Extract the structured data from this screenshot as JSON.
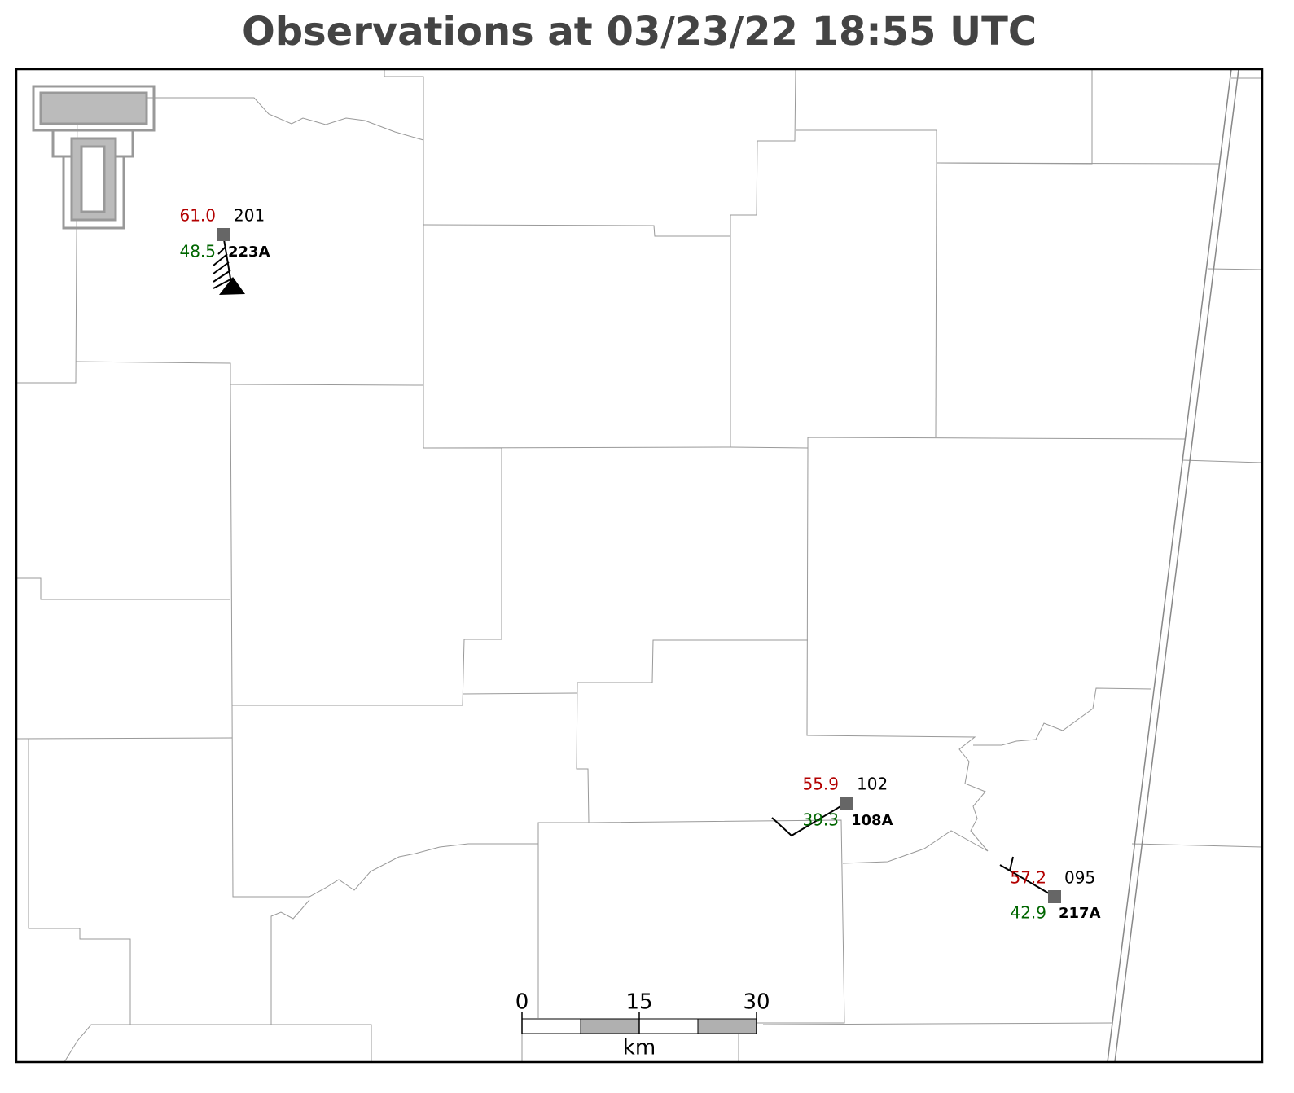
{
  "title": "Observations at 03/23/22 18:55 UTC",
  "stations": [
    {
      "temperature": "61.0",
      "dewpoint": "48.5",
      "pressure": "201",
      "id": "223A"
    },
    {
      "temperature": "55.9",
      "dewpoint": "39.3",
      "pressure": "102",
      "id": "108A"
    },
    {
      "temperature": "57.2",
      "dewpoint": "42.9",
      "pressure": "095",
      "id": "217A"
    }
  ],
  "scale_bar": {
    "ticks": [
      0,
      15,
      30
    ],
    "unit": "km"
  }
}
